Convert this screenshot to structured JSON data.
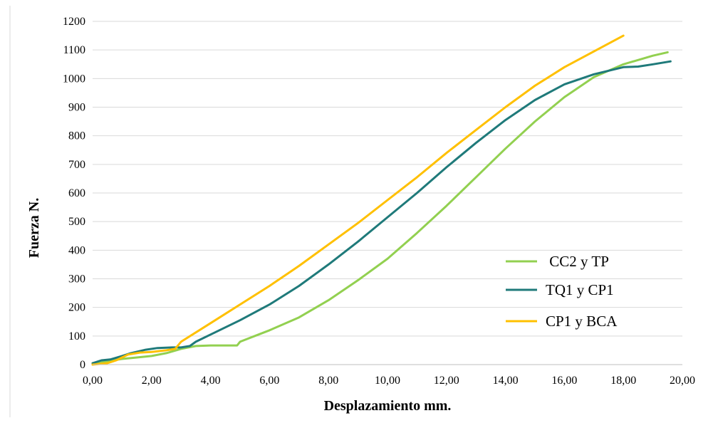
{
  "chart_data": {
    "type": "line",
    "xlabel": "Desplazamiento mm.",
    "ylabel": "Fuerza N.",
    "xlim": [
      0,
      20
    ],
    "ylim": [
      0,
      1200
    ],
    "x_ticks": [
      "0,00",
      "2,00",
      "4,00",
      "6,00",
      "8,00",
      "10,00",
      "12,00",
      "14,00",
      "16,00",
      "18,00",
      "20,00"
    ],
    "y_ticks": [
      "0",
      "100",
      "200",
      "300",
      "400",
      "500",
      "600",
      "700",
      "800",
      "900",
      "1000",
      "1100",
      "1200"
    ],
    "grid": "horizontal",
    "legend_position": "bottom-right",
    "series": [
      {
        "name": " CC2 y TP",
        "color": "#92d050",
        "points": [
          [
            0.0,
            5
          ],
          [
            0.5,
            12
          ],
          [
            1.0,
            20
          ],
          [
            1.5,
            25
          ],
          [
            2.0,
            30
          ],
          [
            2.5,
            40
          ],
          [
            3.0,
            55
          ],
          [
            3.5,
            65
          ],
          [
            4.0,
            67
          ],
          [
            4.5,
            67
          ],
          [
            4.9,
            67
          ],
          [
            5.0,
            80
          ],
          [
            5.5,
            100
          ],
          [
            6.0,
            120
          ],
          [
            7.0,
            165
          ],
          [
            8.0,
            225
          ],
          [
            9.0,
            295
          ],
          [
            10.0,
            370
          ],
          [
            11.0,
            460
          ],
          [
            12.0,
            555
          ],
          [
            13.0,
            655
          ],
          [
            14.0,
            755
          ],
          [
            15.0,
            850
          ],
          [
            16.0,
            935
          ],
          [
            17.0,
            1005
          ],
          [
            18.0,
            1050
          ],
          [
            19.0,
            1080
          ],
          [
            19.5,
            1092
          ]
        ]
      },
      {
        "name": "TQ1 y CP1",
        "color": "#1f7a7a",
        "points": [
          [
            0.0,
            5
          ],
          [
            0.3,
            15
          ],
          [
            0.6,
            18
          ],
          [
            1.0,
            30
          ],
          [
            1.3,
            40
          ],
          [
            1.8,
            52
          ],
          [
            2.2,
            58
          ],
          [
            2.7,
            60
          ],
          [
            3.0,
            60
          ],
          [
            3.3,
            65
          ],
          [
            3.5,
            80
          ],
          [
            4.0,
            105
          ],
          [
            5.0,
            155
          ],
          [
            6.0,
            210
          ],
          [
            7.0,
            275
          ],
          [
            8.0,
            350
          ],
          [
            9.0,
            430
          ],
          [
            10.0,
            515
          ],
          [
            11.0,
            600
          ],
          [
            12.0,
            690
          ],
          [
            13.0,
            775
          ],
          [
            14.0,
            855
          ],
          [
            15.0,
            925
          ],
          [
            16.0,
            980
          ],
          [
            17.0,
            1015
          ],
          [
            18.0,
            1040
          ],
          [
            18.5,
            1042
          ],
          [
            19.0,
            1050
          ],
          [
            19.6,
            1060
          ]
        ]
      },
      {
        "name": "CP1 y BCA",
        "color": "#ffc000",
        "points": [
          [
            0.0,
            0
          ],
          [
            0.5,
            5
          ],
          [
            0.8,
            15
          ],
          [
            1.2,
            35
          ],
          [
            1.6,
            42
          ],
          [
            2.0,
            44
          ],
          [
            2.5,
            50
          ],
          [
            2.8,
            55
          ],
          [
            3.0,
            80
          ],
          [
            4.0,
            145
          ],
          [
            5.0,
            210
          ],
          [
            6.0,
            275
          ],
          [
            7.0,
            345
          ],
          [
            8.0,
            420
          ],
          [
            9.0,
            495
          ],
          [
            10.0,
            575
          ],
          [
            11.0,
            655
          ],
          [
            12.0,
            740
          ],
          [
            13.0,
            820
          ],
          [
            14.0,
            900
          ],
          [
            15.0,
            975
          ],
          [
            16.0,
            1040
          ],
          [
            17.0,
            1095
          ],
          [
            18.0,
            1150
          ]
        ]
      }
    ]
  }
}
